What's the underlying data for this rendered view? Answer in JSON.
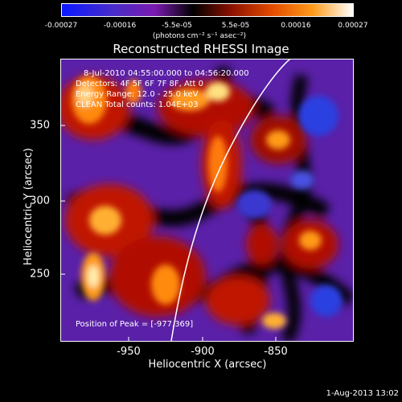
{
  "colorbar": {
    "ticks": [
      "-0.00027",
      "-0.00016",
      "-5.5e-05",
      "5.5e-05",
      "0.00016",
      "0.00027"
    ],
    "unit_label": "(photons cm⁻² s⁻¹ asec⁻²)",
    "colors": [
      "#0a18ff",
      "#4a2cc8",
      "#7a1ab0",
      "#000000",
      "#8a1000",
      "#e24a00",
      "#ff9a18",
      "#ffffff"
    ]
  },
  "plot": {
    "title": "Reconstructed RHESSI Image",
    "annotations": {
      "time_range": "8-Jul-2010 04:55:00.000 to 04:56:20.000",
      "detectors": "Detectors: 4F 5F 6F 7F 8F, Att 0",
      "energy_range": "Energy Range: 12.0 - 25.0 keV",
      "counts": "CLEAN   Total counts: 1.04E+03",
      "peak": "Position of Peak = [-977,369]"
    },
    "x_axis": {
      "label": "Heliocentric X (arcsec)",
      "ticks": [
        "-950",
        "-900",
        "-850"
      ]
    },
    "y_axis": {
      "label": "Heliocentric Y (arcsec)",
      "ticks": [
        "350",
        "300",
        "250"
      ]
    }
  },
  "timestamp": "1-Aug-2013 13:02"
}
